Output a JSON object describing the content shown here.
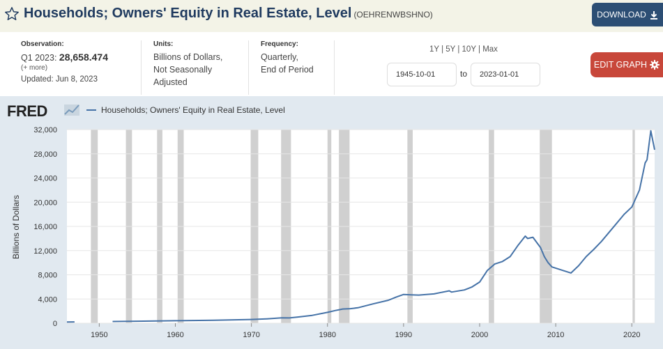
{
  "header": {
    "title": "Households; Owners' Equity in Real Estate, Level",
    "series_code": "(OEHRENWBSHNO)",
    "download_label": "DOWNLOAD"
  },
  "info": {
    "observation_label": "Observation:",
    "observation_period": "Q1 2023:",
    "observation_value": "28,658.474",
    "more_label": "(+ more)",
    "updated": "Updated: Jun 8, 2023",
    "units_label": "Units:",
    "units_line1": "Billions of Dollars,",
    "units_line2": "Not Seasonally",
    "units_line3": "Adjusted",
    "frequency_label": "Frequency:",
    "frequency_line1": "Quarterly,",
    "frequency_line2": "End of Period"
  },
  "controls": {
    "range_1y": "1Y",
    "range_5y": "5Y",
    "range_10y": "10Y",
    "range_max": "Max",
    "sep": "|",
    "start_date": "1945-10-01",
    "to_label": "to",
    "end_date": "2023-01-01",
    "edit_label": "EDIT GRAPH"
  },
  "logo": {
    "text": "FRED"
  },
  "colors": {
    "line": "#4572a7",
    "recession": "#c8c8c8",
    "download": "#2c4e74",
    "edit": "#c8473a"
  },
  "chart_data": {
    "type": "line",
    "title": "Households; Owners' Equity in Real Estate, Level",
    "xlabel": "",
    "ylabel": "Billions of Dollars",
    "xlim": [
      1945.75,
      2023.0
    ],
    "ylim": [
      0,
      32000
    ],
    "x_ticks": [
      1950,
      1960,
      1970,
      1980,
      1990,
      2000,
      2010,
      2020
    ],
    "y_ticks": [
      0,
      4000,
      8000,
      12000,
      16000,
      20000,
      24000,
      28000,
      32000
    ],
    "y_tick_labels": [
      "0",
      "4,000",
      "8,000",
      "12,000",
      "16,000",
      "20,000",
      "24,000",
      "28,000",
      "32,000"
    ],
    "legend": [
      "Households; Owners' Equity in Real Estate, Level"
    ],
    "recessions": [
      [
        1948.9,
        1949.8
      ],
      [
        1953.5,
        1954.3
      ],
      [
        1957.6,
        1958.3
      ],
      [
        1960.3,
        1961.1
      ],
      [
        1969.9,
        1970.9
      ],
      [
        1973.9,
        1975.2
      ],
      [
        1980.0,
        1980.5
      ],
      [
        1981.5,
        1982.9
      ],
      [
        1990.5,
        1991.2
      ],
      [
        2001.2,
        2001.9
      ],
      [
        2007.9,
        2009.5
      ],
      [
        2020.1,
        2020.4
      ]
    ],
    "series": [
      {
        "name": "Households; Owners' Equity in Real Estate, Level",
        "points": [
          [
            1945.75,
            200
          ],
          [
            1946.75,
            220
          ]
        ]
      },
      {
        "name": "Households; Owners' Equity in Real Estate, Level",
        "points": [
          [
            1951.75,
            290
          ],
          [
            1955,
            330
          ],
          [
            1960,
            410
          ],
          [
            1965,
            480
          ],
          [
            1970,
            620
          ],
          [
            1972,
            720
          ],
          [
            1974,
            900
          ],
          [
            1975,
            870
          ],
          [
            1976,
            1000
          ],
          [
            1978,
            1300
          ],
          [
            1980,
            1800
          ],
          [
            1981,
            2100
          ],
          [
            1982,
            2350
          ],
          [
            1983,
            2400
          ],
          [
            1984,
            2550
          ],
          [
            1986,
            3200
          ],
          [
            1988,
            3800
          ],
          [
            1989,
            4300
          ],
          [
            1990,
            4750
          ],
          [
            1991,
            4700
          ],
          [
            1992,
            4650
          ],
          [
            1994,
            4850
          ],
          [
            1995,
            5100
          ],
          [
            1996,
            5350
          ],
          [
            1996.3,
            5150
          ],
          [
            1998,
            5500
          ],
          [
            1999,
            6000
          ],
          [
            2000,
            6800
          ],
          [
            2001,
            8700
          ],
          [
            2002,
            9800
          ],
          [
            2003,
            10200
          ],
          [
            2004,
            11000
          ],
          [
            2005,
            12800
          ],
          [
            2006,
            14400
          ],
          [
            2006.3,
            14000
          ],
          [
            2007,
            14200
          ],
          [
            2008,
            12500
          ],
          [
            2008.5,
            11000
          ],
          [
            2009,
            10000
          ],
          [
            2009.5,
            9300
          ],
          [
            2010,
            9100
          ],
          [
            2011,
            8700
          ],
          [
            2012,
            8300
          ],
          [
            2013,
            9500
          ],
          [
            2014,
            11000
          ],
          [
            2015,
            12200
          ],
          [
            2016,
            13500
          ],
          [
            2017,
            15000
          ],
          [
            2018,
            16500
          ],
          [
            2019,
            18000
          ],
          [
            2020,
            19200
          ],
          [
            2021,
            22000
          ],
          [
            2021.75,
            26500
          ],
          [
            2022,
            27000
          ],
          [
            2022.5,
            31800
          ],
          [
            2023,
            28658
          ]
        ]
      }
    ]
  }
}
